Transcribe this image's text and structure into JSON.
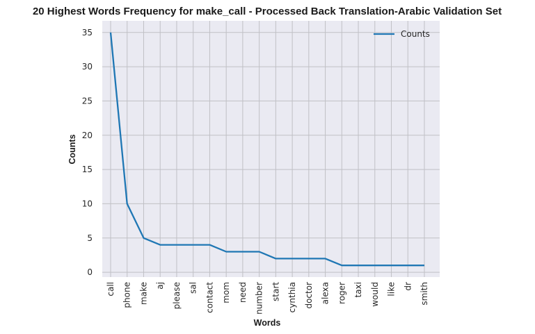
{
  "chart_data": {
    "type": "line",
    "title": "20 Highest Words Frequency for make_call - Processed Back Translation-Arabic Validation Set",
    "xlabel": "Words",
    "ylabel": "Counts",
    "categories": [
      "call",
      "phone",
      "make",
      "aj",
      "please",
      "sal",
      "contact",
      "mom",
      "need",
      "number",
      "start",
      "cynthia",
      "doctor",
      "alexa",
      "roger",
      "taxi",
      "would",
      "like",
      "dr",
      "smith"
    ],
    "series": [
      {
        "name": "Counts",
        "values": [
          35,
          10,
          5,
          4,
          4,
          4,
          4,
          3,
          3,
          3,
          2,
          2,
          2,
          2,
          1,
          1,
          1,
          1,
          1,
          1
        ]
      }
    ],
    "ylim": [
      -0.7,
      36.7
    ],
    "yticks": [
      0,
      5,
      10,
      15,
      20,
      25,
      30,
      35
    ],
    "grid": true,
    "legend_position": "top-right",
    "colors": {
      "line": "#1f77b4",
      "plot_bg": "#eaeaf2",
      "grid": "#c0c0c5"
    }
  }
}
